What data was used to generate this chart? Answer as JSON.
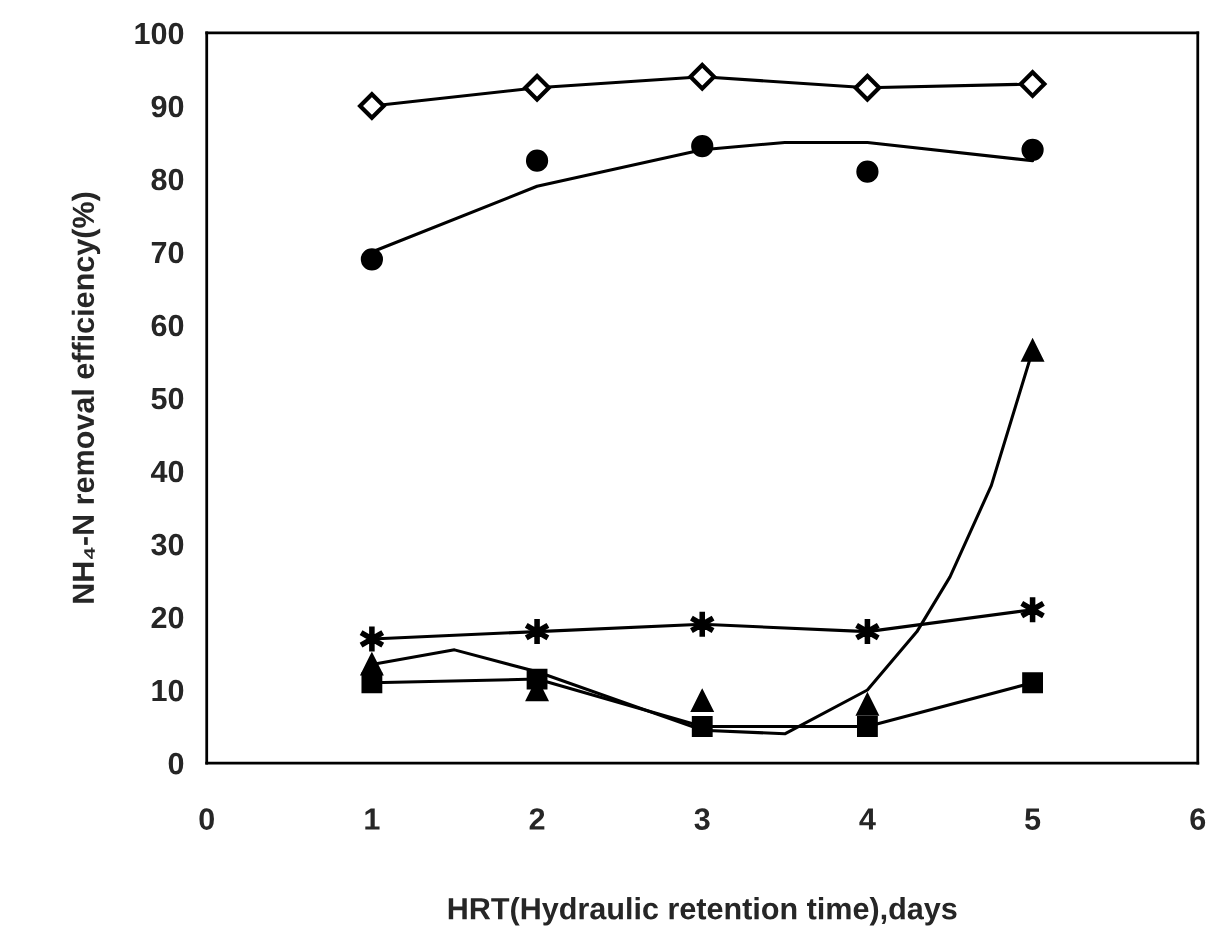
{
  "chart_data": {
    "type": "scatter",
    "xlabel": "HRT(Hydraulic retention time),days",
    "ylabel": "NH₄-N removal efficiency(%)",
    "xlim": [
      0,
      6
    ],
    "xticks": [
      0,
      1,
      2,
      3,
      4,
      5,
      6
    ],
    "ylim": [
      0,
      100
    ],
    "yticks": [
      0,
      10,
      20,
      30,
      40,
      50,
      60,
      70,
      80,
      90,
      100
    ],
    "grid": false,
    "legend": false,
    "series": [
      {
        "type": "line",
        "marker": "diamond",
        "color": "#000000",
        "x": [
          1,
          2,
          3,
          4,
          5
        ],
        "values": [
          90,
          92.5,
          94,
          92.5,
          93
        ]
      },
      {
        "marker": "circle",
        "color": "#000000",
        "x": [
          1,
          2,
          3,
          4,
          5
        ],
        "values": [
          69,
          82.5,
          84.5,
          81,
          84
        ]
      },
      {
        "type": "line",
        "marker": "none",
        "color": "#000000",
        "x": [
          1,
          2,
          3,
          3.5,
          4,
          5
        ],
        "values": [
          70,
          79,
          84,
          85,
          85,
          82.5
        ]
      },
      {
        "marker": "triangle",
        "color": "#000000",
        "x": [
          1,
          2,
          3,
          4,
          5
        ],
        "values": [
          13.5,
          10,
          8.5,
          8,
          56.5
        ]
      },
      {
        "type": "line",
        "marker": "none",
        "color": "#000000",
        "x": [
          1,
          1.5,
          2,
          3,
          3.5,
          4,
          4.3,
          4.5,
          4.75,
          5
        ],
        "values": [
          13.5,
          15.5,
          12.5,
          4.5,
          4,
          10,
          18,
          25.5,
          38,
          56.5
        ]
      },
      {
        "type": "line",
        "marker": "cross",
        "color": "#000000",
        "x": [
          1,
          2,
          3,
          4,
          5
        ],
        "values": [
          17,
          18,
          19,
          18,
          21
        ]
      },
      {
        "type": "line",
        "marker": "square",
        "color": "#000000",
        "x": [
          1,
          2,
          3,
          4,
          5
        ],
        "values": [
          11,
          11.5,
          5,
          5,
          11
        ]
      }
    ]
  }
}
